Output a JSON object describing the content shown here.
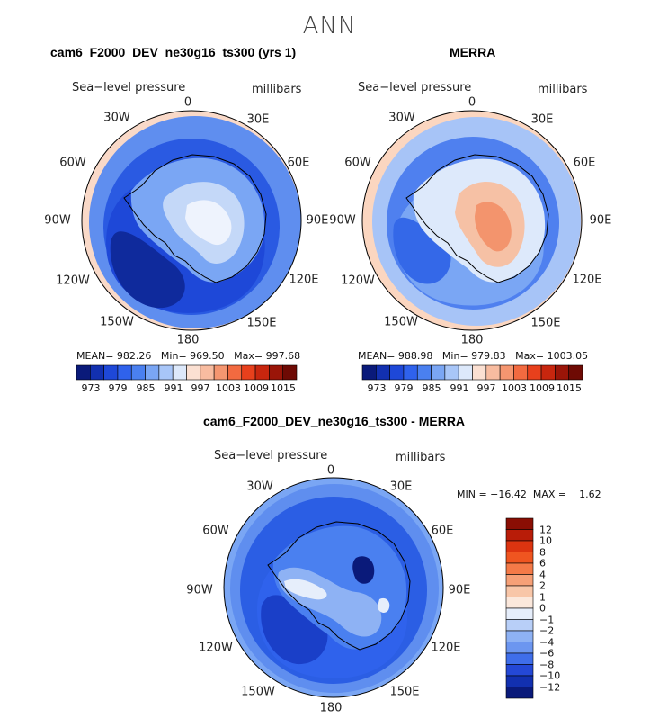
{
  "season": "ANN",
  "panels": [
    {
      "title": "cam6_F2000_DEV_ne30g16_ts300 (yrs 1)",
      "variable": "Sea−level pressure",
      "units": "millibars",
      "stats": {
        "mean_label": "MEAN=",
        "mean": "982.26",
        "min_label": "Min=",
        "min": "969.50",
        "max_label": "Max=",
        "max": "997.68"
      }
    },
    {
      "title": "MERRA",
      "variable": "Sea−level pressure",
      "units": "millibars",
      "stats": {
        "mean_label": "MEAN=",
        "mean": "988.98",
        "min_label": "Min=",
        "min": "979.83",
        "max_label": "Max=",
        "max": "1003.05"
      }
    },
    {
      "title": "cam6_F2000_DEV_ne30g16_ts300 - MERRA",
      "variable": "Sea−level pressure",
      "units": "millibars",
      "minmax": "MIN = −16.42  MAX =    1.62"
    }
  ],
  "lon_labels": [
    "0",
    "30E",
    "60E",
    "90E",
    "120E",
    "150E",
    "180",
    "150W",
    "120W",
    "90W",
    "60W",
    "30W"
  ],
  "colorbar_abs": {
    "ticks": [
      "973",
      "979",
      "985",
      "991",
      "997",
      "1003",
      "1009",
      "1015"
    ],
    "colors": [
      "#0a1a7a",
      "#1230b0",
      "#1e48d8",
      "#2f62ec",
      "#4a80f0",
      "#7aa6f4",
      "#a8c6f8",
      "#dde9fb",
      "#fbe0d2",
      "#f8bca0",
      "#f59670",
      "#f26a40",
      "#e8401c",
      "#c8260e",
      "#9a1508",
      "#6e0a04"
    ]
  },
  "colorbar_diff": {
    "ticks": [
      "12",
      "10",
      "8",
      "6",
      "4",
      "2",
      "1",
      "0",
      "−1",
      "−2",
      "−4",
      "−6",
      "−8",
      "−10",
      "−12"
    ],
    "colors": [
      "#8a0e04",
      "#b81c08",
      "#dc3410",
      "#ef5520",
      "#f47a48",
      "#f6a077",
      "#f8c6a8",
      "#fbe8dc",
      "#e6eefb",
      "#b8cff8",
      "#8eb2f4",
      "#6c96f0",
      "#3f6eea",
      "#2448d6",
      "#1230b0",
      "#0a1a7a"
    ]
  },
  "map_fills": {
    "panel1": {
      "ocean_outer": "#5f8eef",
      "ring": "#2a5ae2",
      "deep": "#0f2a9c",
      "ice": "#c4d8f8",
      "plateau": "#eef3fd",
      "edge": "#f9d9c8"
    },
    "panel2": {
      "ocean_outer": "#a7c4f7",
      "ring": "#4f80ef",
      "deep": "#3468e8",
      "ice": "#f6c1a5",
      "plateau": "#f3946d",
      "edge": "#fbd6c0"
    },
    "panel3": {
      "ocean_outer": "#5f8eef",
      "ring": "#2b5ee4",
      "deep": "#1a3fc8",
      "ice": "#8eb2f4",
      "plateau": "#e6eefb",
      "edge": "#7aa6f4"
    }
  }
}
